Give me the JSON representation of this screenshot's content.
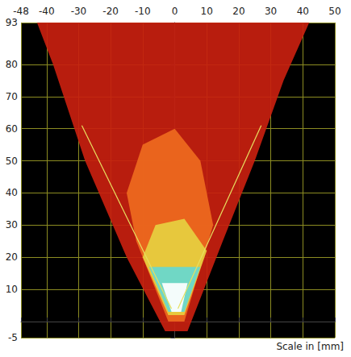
{
  "chart_data": {
    "type": "line",
    "annotation": "Scale in [mm]",
    "xlim": [
      -48,
      50
    ],
    "xticks": [
      -48,
      -40,
      -30,
      -20,
      -10,
      0,
      10,
      20,
      30,
      40,
      50
    ],
    "ylim": [
      -5,
      93
    ],
    "yticks": [
      -5,
      10,
      20,
      30,
      40,
      50,
      60,
      70,
      80,
      93
    ],
    "grid": true,
    "series": [
      {
        "type": "polygon",
        "color": "#c8200f",
        "x": [
          -3,
          -15,
          -28,
          -38,
          -43,
          42,
          34,
          25,
          15,
          4
        ],
        "values": [
          -3,
          20,
          50,
          80,
          93,
          93,
          75,
          50,
          25,
          -3
        ]
      },
      {
        "type": "polygon",
        "color": "#ee6a1e",
        "x": [
          -2,
          -12,
          -15,
          -10,
          0,
          8,
          12,
          3
        ],
        "values": [
          0,
          25,
          40,
          55,
          60,
          50,
          30,
          0
        ]
      },
      {
        "type": "polygon",
        "color": "#e6d040",
        "x": [
          -2,
          -10,
          -6,
          3,
          10,
          3
        ],
        "values": [
          2,
          20,
          30,
          32,
          22,
          2
        ]
      },
      {
        "type": "polygon",
        "color": "#66d8d0",
        "x": [
          -2,
          -8,
          8,
          3
        ],
        "values": [
          3,
          17,
          17,
          3
        ]
      },
      {
        "type": "polygon",
        "color": "#ffffff",
        "x": [
          -1,
          -4,
          4,
          2
        ],
        "values": [
          3,
          12,
          12,
          3
        ]
      },
      {
        "type": "line",
        "color": "#e8e060",
        "x": [
          -1,
          -29
        ],
        "values": [
          4,
          61
        ]
      },
      {
        "type": "line",
        "color": "#e8e060",
        "x": [
          1,
          27
        ],
        "values": [
          4,
          61
        ]
      }
    ]
  }
}
